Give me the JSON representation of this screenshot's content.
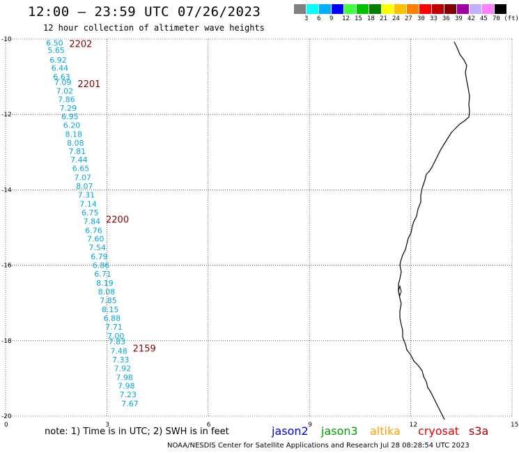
{
  "header": {
    "title": "12:00 – 23:59 UTC 07/26/2023",
    "subtitle": "12 hour collection of altimeter wave heights"
  },
  "colorbar": {
    "colors": [
      "#808080",
      "#00ffff",
      "#00b0ff",
      "#0000ff",
      "#40ff40",
      "#00c000",
      "#008000",
      "#ffff00",
      "#ffc000",
      "#ff8000",
      "#ff0000",
      "#c00000",
      "#800000",
      "#a000a0",
      "#c0b0ff",
      "#ff80ff",
      "#000000"
    ],
    "labels": [
      "3",
      "6",
      "9",
      "12",
      "15",
      "18",
      "21",
      "24",
      "27",
      "30",
      "33",
      "36",
      "39",
      "42",
      "45",
      "70 (ft)"
    ]
  },
  "axes": {
    "y_labels": [
      "-10",
      "-12",
      "-14",
      "-16",
      "-18",
      "-20"
    ],
    "x_labels": [
      "0",
      "3",
      "6",
      "9",
      "12",
      "15"
    ]
  },
  "track": {
    "color": "#00a8d8",
    "time_color": "#800000",
    "times": [
      {
        "label": "2202",
        "lat": -10.12
      },
      {
        "label": "2201",
        "lat": -11.18
      },
      {
        "label": "2200",
        "lat": -14.78
      },
      {
        "label": "2159",
        "lat": -18.2
      }
    ],
    "points": [
      {
        "lat": -10.1,
        "swh": "6.50"
      },
      {
        "lat": -10.3,
        "swh": "5.65"
      },
      {
        "lat": -10.55,
        "swh": "6.92"
      },
      {
        "lat": -10.77,
        "swh": "6.44"
      },
      {
        "lat": -11.0,
        "swh": "6.63"
      },
      {
        "lat": -11.15,
        "swh": "7.09"
      },
      {
        "lat": -11.38,
        "swh": "7.02"
      },
      {
        "lat": -11.6,
        "swh": "7.86"
      },
      {
        "lat": -11.83,
        "swh": "7.29"
      },
      {
        "lat": -12.05,
        "swh": "6.95"
      },
      {
        "lat": -12.28,
        "swh": "6.20"
      },
      {
        "lat": -12.52,
        "swh": "8.18"
      },
      {
        "lat": -12.75,
        "swh": "8.08"
      },
      {
        "lat": -12.98,
        "swh": "7.81"
      },
      {
        "lat": -13.2,
        "swh": "7.44"
      },
      {
        "lat": -13.43,
        "swh": "6.65"
      },
      {
        "lat": -13.67,
        "swh": "7.07"
      },
      {
        "lat": -13.9,
        "swh": "8.07"
      },
      {
        "lat": -14.13,
        "swh": "7.31"
      },
      {
        "lat": -14.37,
        "swh": "7.14"
      },
      {
        "lat": -14.6,
        "swh": "6.75"
      },
      {
        "lat": -14.83,
        "swh": "7.84"
      },
      {
        "lat": -15.07,
        "swh": "6.76"
      },
      {
        "lat": -15.3,
        "swh": "7.60"
      },
      {
        "lat": -15.53,
        "swh": "7.54"
      },
      {
        "lat": -15.77,
        "swh": "6.79"
      },
      {
        "lat": -16.0,
        "swh": "6.86"
      },
      {
        "lat": -16.23,
        "swh": "6.71"
      },
      {
        "lat": -16.47,
        "swh": "8.19"
      },
      {
        "lat": -16.7,
        "swh": "8.08"
      },
      {
        "lat": -16.93,
        "swh": "7.85"
      },
      {
        "lat": -17.17,
        "swh": "8.15"
      },
      {
        "lat": -17.4,
        "swh": "6.88"
      },
      {
        "lat": -17.63,
        "swh": "7.71"
      },
      {
        "lat": -17.87,
        "swh": "7.00"
      },
      {
        "lat": -18.02,
        "swh": "7.83"
      },
      {
        "lat": -18.27,
        "swh": "7.48"
      },
      {
        "lat": -18.5,
        "swh": "7.33"
      },
      {
        "lat": -18.73,
        "swh": "7.92"
      },
      {
        "lat": -18.97,
        "swh": "7.98"
      },
      {
        "lat": -19.2,
        "swh": "7.98"
      },
      {
        "lat": -19.43,
        "swh": "7.23"
      },
      {
        "lat": -19.67,
        "swh": "7.67"
      }
    ]
  },
  "footer": {
    "note": "note: 1) Time is in UTC; 2) SWH is in feet",
    "credit": "NOAA/NESDIS Center for Satellite Applications and Research   Jul 28 08:28:54 UTC 2023",
    "missions": [
      {
        "label": "jason2",
        "color": "#0000e0"
      },
      {
        "label": "jason3",
        "color": "#00a000"
      },
      {
        "label": "altika",
        "color": "#ffa000"
      },
      {
        "label": "cryosat",
        "color": "#e00000"
      },
      {
        "label": "s3a",
        "color": "#a00000"
      }
    ]
  }
}
